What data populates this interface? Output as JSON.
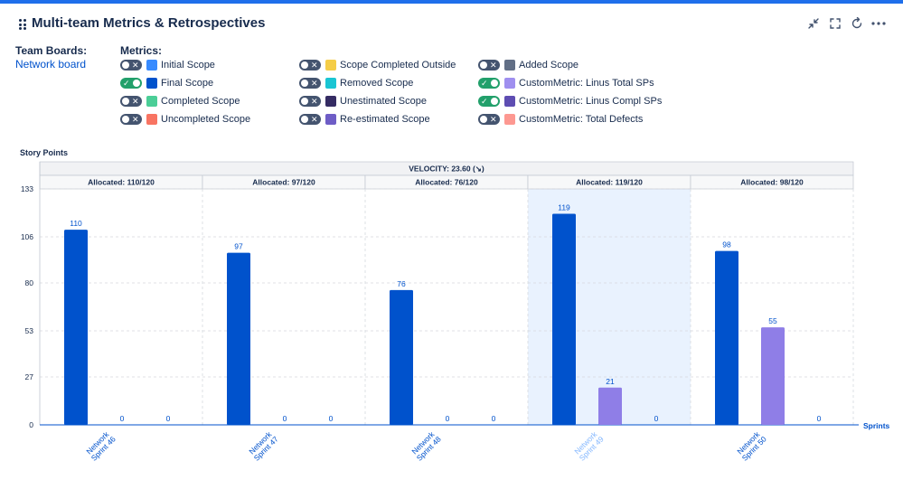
{
  "header": {
    "title": "Multi-team Metrics & Retrospectives",
    "icons": [
      "drag-handle-icon",
      "minimize-icon",
      "fullscreen-icon",
      "refresh-icon",
      "more-icon"
    ]
  },
  "filters": {
    "team_boards_label": "Team Boards:",
    "team_board": "Network board",
    "metrics_label": "Metrics:"
  },
  "metrics": [
    {
      "label": "Initial Scope",
      "on": false,
      "color": "#388bff"
    },
    {
      "label": "Final Scope",
      "on": true,
      "color": "#0052cc"
    },
    {
      "label": "Completed Scope",
      "on": false,
      "color": "#4bce97"
    },
    {
      "label": "Uncompleted Scope",
      "on": false,
      "color": "#f87462"
    },
    {
      "label": "Scope Completed Outside",
      "on": false,
      "color": "#f5cd47"
    },
    {
      "label": "Removed Scope",
      "on": false,
      "color": "#1ac5d3"
    },
    {
      "label": "Unestimated Scope",
      "on": false,
      "color": "#352c63"
    },
    {
      "label": "Re-estimated Scope",
      "on": false,
      "color": "#6e5dc6"
    },
    {
      "label": "Added Scope",
      "on": false,
      "color": "#626f86"
    },
    {
      "label": "CustomMetric: Linus Total SPs",
      "on": true,
      "color": "#9f8fef"
    },
    {
      "label": "CustomMetric: Linus Compl SPs",
      "on": true,
      "color": "#5e4db2"
    },
    {
      "label": "CustomMetric: Total Defects",
      "on": false,
      "color": "#fd9891"
    }
  ],
  "chart_data": {
    "type": "bar",
    "ylabel": "Story Points",
    "xlabel": "Sprints",
    "velocity_label": "VELOCITY: 23.60 (↘)",
    "ylim": [
      0,
      133
    ],
    "yticks": [
      0,
      27,
      53,
      80,
      106,
      133
    ],
    "grid": true,
    "highlighted_index": 3,
    "categories": [
      "Network Sprint 46",
      "Network Sprint 47",
      "Network Sprint 48",
      "Network Sprint 49",
      "Network Sprint 50"
    ],
    "allocated": [
      "Allocated: 110/120",
      "Allocated: 97/120",
      "Allocated: 76/120",
      "Allocated: 119/120",
      "Allocated: 98/120"
    ],
    "series": [
      {
        "name": "Final Scope",
        "color": "#0052cc",
        "values": [
          110,
          97,
          76,
          119,
          98
        ]
      },
      {
        "name": "CustomMetric: Linus Total SPs",
        "color": "#8f7ee7",
        "values": [
          0,
          0,
          0,
          21,
          55
        ]
      },
      {
        "name": "CustomMetric: Linus Compl SPs",
        "color": "#5e4db2",
        "values": [
          0,
          0,
          0,
          0,
          0
        ]
      }
    ]
  }
}
